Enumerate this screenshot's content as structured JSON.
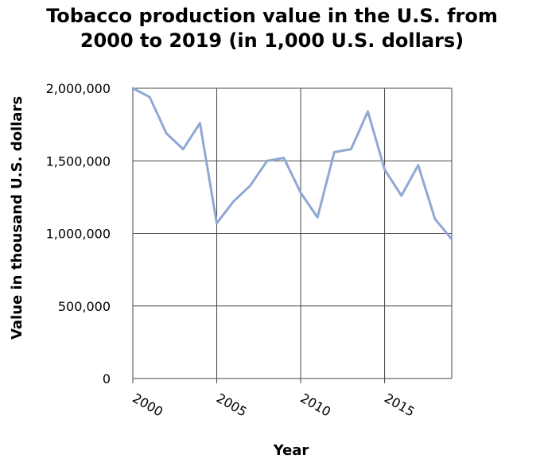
{
  "chart_data": {
    "type": "line",
    "title": [
      "Tobacco production value in the U.S. from",
      "2000 to 2019 (in 1,000 U.S. dollars)"
    ],
    "xlabel": "Year",
    "ylabel": "Value in thousand U.S. dollars",
    "x_ticks": [
      2000,
      2005,
      2010,
      2015
    ],
    "y_ticks": [
      "0",
      "500,000",
      "1,000,000",
      "1,500,000",
      "2,000,000"
    ],
    "y_tick_values": [
      0,
      500000,
      1000000,
      1500000,
      2000000
    ],
    "xlim": [
      2000,
      2019
    ],
    "ylim": [
      0,
      2000000
    ],
    "grid": true,
    "line_color": "#8fa8d4",
    "series": [
      {
        "x": [
          2000,
          2001,
          2002,
          2003,
          2004,
          2005,
          2006,
          2007,
          2008,
          2009,
          2010,
          2011,
          2012,
          2013,
          2014,
          2015,
          2016,
          2017,
          2018,
          2019
        ],
        "values": [
          2000000,
          1940000,
          1690000,
          1580000,
          1760000,
          1070000,
          1220000,
          1330000,
          1500000,
          1520000,
          1280000,
          1110000,
          1560000,
          1580000,
          1840000,
          1440000,
          1260000,
          1470000,
          1100000,
          960000
        ]
      }
    ]
  }
}
